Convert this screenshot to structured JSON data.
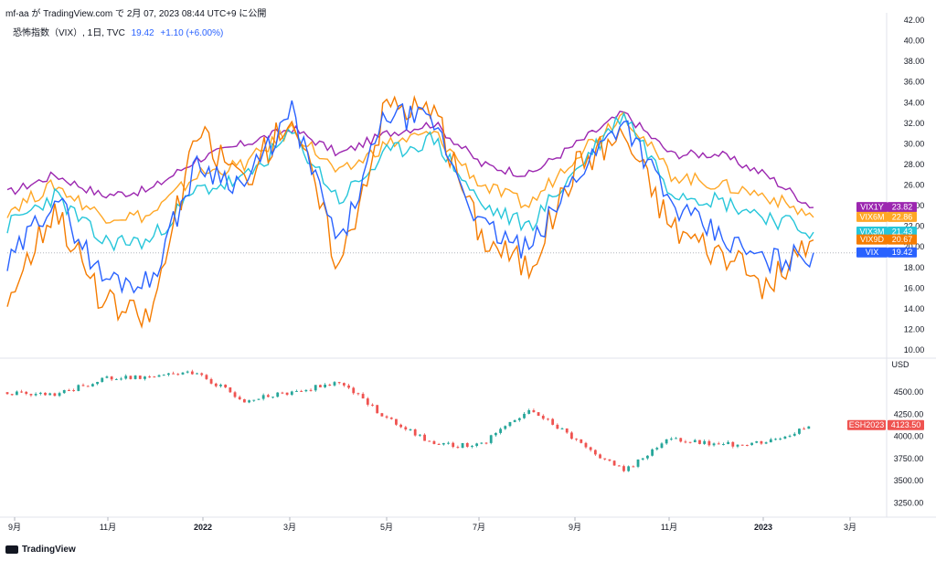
{
  "header": {
    "attribution": "mf-aa が TradingView.com で 2月 07, 2023 08:44 UTC+9 に公開",
    "symbol_line": "恐怖指数（VIX）, 1日, TVC",
    "last": "19.42",
    "change": "+1.10 (+6.00%)",
    "change_color": "#2962ff"
  },
  "watermark": {
    "brand": "TradingView"
  },
  "chart_data": [
    {
      "type": "line",
      "title": "恐怖指数（VIX）, 1日, TVC",
      "ylim": [
        10,
        42
      ],
      "y_ticks": [
        "10.00",
        "12.00",
        "14.00",
        "16.00",
        "18.00",
        "20.00",
        "22.00",
        "24.00",
        "26.00",
        "28.00",
        "30.00",
        "32.00",
        "34.00",
        "36.00",
        "38.00",
        "40.00",
        "42.00"
      ],
      "x_ticks": [
        "9月",
        "11月",
        "2022",
        "3月",
        "5月",
        "7月",
        "9月",
        "11月",
        "2023",
        "3月"
      ],
      "x": [
        "2021-09",
        "2021-10",
        "2021-11",
        "2021-12",
        "2022-01",
        "2022-02",
        "2022-03",
        "2022-04",
        "2022-05",
        "2022-06",
        "2022-07",
        "2022-08",
        "2022-09",
        "2022-10",
        "2022-11",
        "2022-12",
        "2023-01",
        "2023-02"
      ],
      "series": [
        {
          "name": "VIX1Y",
          "color": "#9c27b0",
          "last": 23.82,
          "values": [
            25.2,
            27,
            25,
            25.5,
            28.5,
            30,
            31.5,
            29,
            31,
            32,
            28,
            27,
            30,
            33,
            29,
            29,
            27,
            23.8
          ]
        },
        {
          "name": "VIX6M",
          "color": "#ffa726",
          "last": 22.86,
          "values": [
            23.5,
            26,
            23,
            23,
            27,
            28,
            31.5,
            27,
            30,
            31,
            26,
            24,
            29,
            33,
            27,
            26,
            25,
            22.9
          ]
        },
        {
          "name": "VIX3M",
          "color": "#26c6da",
          "last": 21.43,
          "values": [
            22,
            25,
            20.5,
            20.5,
            25.5,
            26.5,
            31,
            24.5,
            29,
            30.5,
            24,
            22,
            27.5,
            33,
            25.5,
            24.5,
            23,
            21.4
          ]
        },
        {
          "name": "VIX9D",
          "color": "#f57c00",
          "last": 20.67,
          "values": [
            15,
            24,
            14.5,
            13,
            31,
            26.5,
            33,
            18,
            34,
            33,
            21,
            18,
            28,
            31,
            22,
            19.5,
            16,
            20.7
          ]
        },
        {
          "name": "VIX",
          "color": "#2962ff",
          "last": 19.42,
          "values": [
            18,
            25,
            17,
            16.5,
            28,
            26,
            33,
            20,
            33,
            32,
            22,
            19.5,
            27,
            32.5,
            24,
            21,
            18.5,
            19.4
          ]
        }
      ]
    },
    {
      "type": "candlestick",
      "title": "ESH2023",
      "ylabel": "USD",
      "ylim": [
        3150,
        4750
      ],
      "y_ticks": [
        "3250.00",
        "3500.00",
        "3750.00",
        "4000.00",
        "4250.00",
        "4500.00"
      ],
      "x": [
        "2021-09",
        "2021-10",
        "2021-11",
        "2021-12",
        "2022-01",
        "2022-02",
        "2022-03",
        "2022-04",
        "2022-05",
        "2022-06",
        "2022-07",
        "2022-08",
        "2022-09",
        "2022-10",
        "2022-11",
        "2022-12",
        "2023-01",
        "2023-02"
      ],
      "values": [
        4500,
        4460,
        4650,
        4680,
        4720,
        4400,
        4500,
        4620,
        4200,
        3900,
        3900,
        4320,
        3950,
        3600,
        3980,
        3900,
        3950,
        4123.5
      ],
      "last": 4123.5,
      "up_color": "#26a69a",
      "down_color": "#ef5350",
      "tag_color": "#ef5350"
    }
  ]
}
